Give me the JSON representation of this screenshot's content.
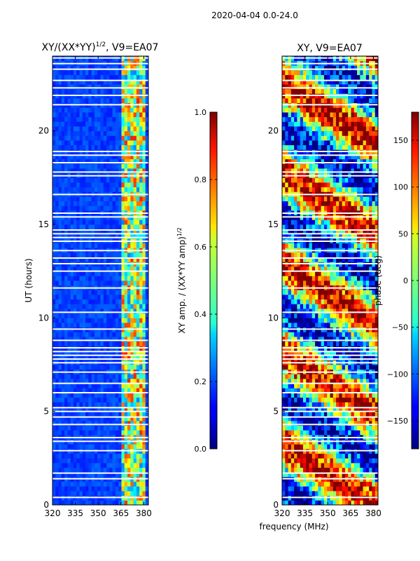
{
  "suptitle": "2020-04-04 0.0-24.0",
  "chart_data": [
    {
      "type": "heatmap",
      "title": "XY/(XX*YY)¹ᐟ², V9=EA07",
      "title_main": "XY/(XX*YY)",
      "title_exp": "1/2",
      "title_tail": ", V9=EA07",
      "xlabel": "",
      "ylabel": "UT (hours)",
      "xlim": [
        320,
        383
      ],
      "ylim": [
        0,
        24
      ],
      "xticks": [
        "320",
        "335",
        "350",
        "365",
        "380"
      ],
      "xtick_values": [
        320,
        335,
        350,
        365,
        380
      ],
      "yticks": [
        "0",
        "5",
        "10",
        "15",
        "20"
      ],
      "ytick_values": [
        0,
        5,
        10,
        15,
        20
      ],
      "colormap": "jet",
      "colorbar": {
        "label": "XY amp. / (XX*YY amp)",
        "label_exp": "1/2",
        "range": [
          0.0,
          1.0
        ],
        "ticks": [
          "0.0",
          "0.2",
          "0.4",
          "0.6",
          "0.8",
          "1.0"
        ],
        "tick_values": [
          0.0,
          0.2,
          0.4,
          0.6,
          0.8,
          1.0
        ]
      },
      "description_values": {
        "background_level": 0.15,
        "band_365_382_level": 0.55
      },
      "flagged_hours": [
        0.4,
        1.4,
        1.7,
        2.9,
        3.4,
        3.6,
        4.3,
        4.7,
        5.0,
        5.2,
        6.0,
        6.5,
        7.1,
        7.6,
        7.8,
        8.0,
        8.2,
        8.4,
        8.8,
        9.4,
        10.3,
        11.6,
        12.5,
        12.9,
        13.2,
        13.6,
        14.1,
        14.3,
        14.5,
        14.7,
        15.4,
        15.6,
        16.6,
        17.6,
        17.8,
        18.3,
        18.7,
        18.9,
        21.4,
        21.9,
        22.3,
        22.7,
        23.3,
        23.6,
        23.9
      ]
    },
    {
      "type": "heatmap",
      "title": "XY, V9=EA07",
      "xlabel": "frequency (MHz)",
      "ylabel": "",
      "xlim": [
        320,
        383
      ],
      "ylim": [
        0,
        24
      ],
      "xticks": [
        "320",
        "335",
        "350",
        "365",
        "380"
      ],
      "xtick_values": [
        320,
        335,
        350,
        365,
        380
      ],
      "yticks": [
        "0",
        "5",
        "10",
        "15",
        "20"
      ],
      "ytick_values": [
        0,
        5,
        10,
        15,
        20
      ],
      "colormap": "jet",
      "colorbar": {
        "label": "phase (deg)",
        "range": [
          -180,
          180
        ],
        "ticks": [
          "−150",
          "−100",
          "−50",
          "0",
          "50",
          "100",
          "150"
        ],
        "tick_values": [
          -150,
          -100,
          -50,
          0,
          50,
          100,
          150
        ]
      },
      "flagged_hours": [
        0.4,
        1.4,
        1.7,
        2.9,
        3.4,
        3.6,
        4.3,
        4.7,
        5.0,
        5.2,
        6.0,
        6.5,
        7.1,
        7.6,
        7.8,
        8.0,
        8.2,
        8.4,
        8.8,
        9.4,
        10.3,
        11.6,
        12.5,
        12.9,
        13.2,
        13.6,
        14.1,
        14.3,
        14.5,
        14.7,
        15.4,
        15.6,
        16.6,
        17.6,
        17.8,
        18.3,
        18.7,
        18.9,
        21.4,
        21.9,
        22.3,
        22.7,
        23.3,
        23.6,
        23.9
      ]
    }
  ]
}
